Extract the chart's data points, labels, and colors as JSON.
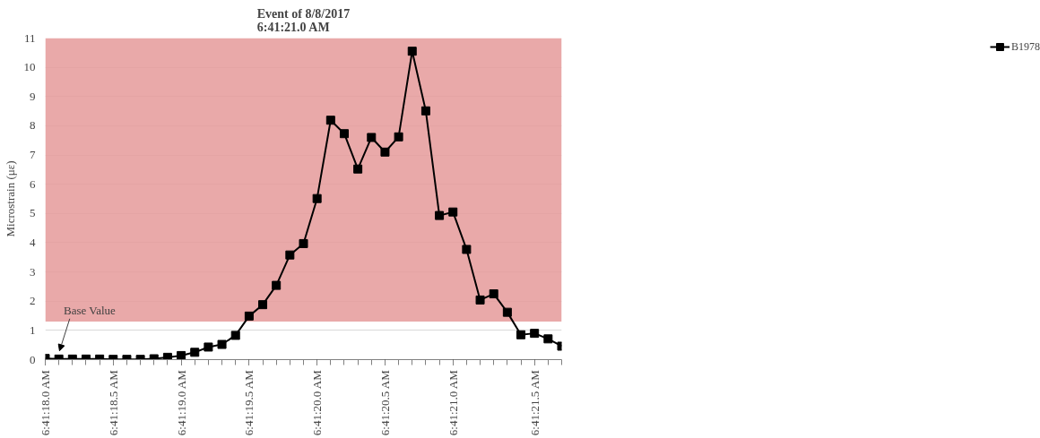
{
  "chart_data": {
    "type": "line",
    "title": "Event of 8/8/2017\n6:41:21.0 AM",
    "ylabel": "Microstrain (με)",
    "categories": [
      "6:41:18.0 AM",
      null,
      null,
      null,
      null,
      "6:41:18.5 AM",
      null,
      null,
      null,
      null,
      "6:41:19.0 AM",
      null,
      null,
      null,
      null,
      "6:41:19.5 AM",
      null,
      null,
      null,
      null,
      "6:41:20.0 AM",
      null,
      null,
      null,
      null,
      "6:41:20.5 AM",
      null,
      null,
      null,
      null,
      "6:41:21.0 AM",
      null,
      null,
      null,
      null,
      null,
      "6:41:21.5 AM",
      null,
      null
    ],
    "series": [
      {
        "name": "B1978",
        "color": "#000000",
        "values": [
          0.04,
          0.02,
          0.02,
          0.02,
          0.02,
          0.01,
          0.01,
          0.01,
          0.03,
          0.08,
          0.14,
          0.25,
          0.43,
          0.52,
          0.83,
          1.49,
          1.88,
          2.54,
          3.58,
          3.97,
          5.51,
          8.19,
          7.73,
          6.52,
          7.6,
          7.1,
          7.62,
          10.55,
          8.51,
          4.93,
          5.05,
          3.77,
          2.04,
          2.25,
          1.62,
          0.85,
          0.9,
          0.71,
          0.46
        ]
      }
    ],
    "bands": [
      {
        "axis": "y",
        "from": 1.3,
        "to": 11,
        "color": "#e59a9a"
      }
    ],
    "annotations": [
      "Base Value"
    ],
    "ylim": [
      0,
      11
    ],
    "yticks": [
      0,
      1,
      2,
      3,
      4,
      5,
      6,
      7,
      8,
      9,
      10,
      11
    ],
    "grid": "y",
    "legend": "top right",
    "marker": "square",
    "line_style": "solid"
  }
}
